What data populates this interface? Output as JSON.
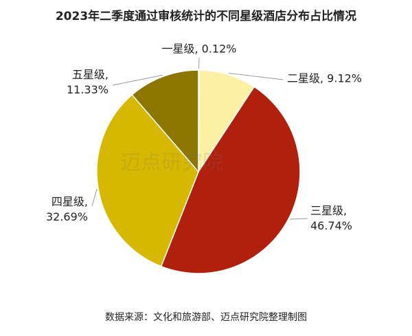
{
  "chart_data": {
    "type": "pie",
    "title": "2023年二季度通过审核统计的不同星级酒店分布占比情况",
    "values": [
      0.12,
      9.12,
      46.74,
      32.69,
      11.33
    ],
    "value_labels": [
      "一星级, 0.12%",
      "二星级, 9.12%",
      "三星级, 46.74%",
      "四星级, 32.69%",
      "五星级, 11.33%"
    ],
    "colors": [
      "#fbf3c4",
      "#fcf0a4",
      "#b0200c",
      "#d7b800",
      "#8c7600"
    ],
    "watermark": "迈点研究院",
    "source": "数据来源：文化和旅游部、迈点研究院整理制图"
  }
}
